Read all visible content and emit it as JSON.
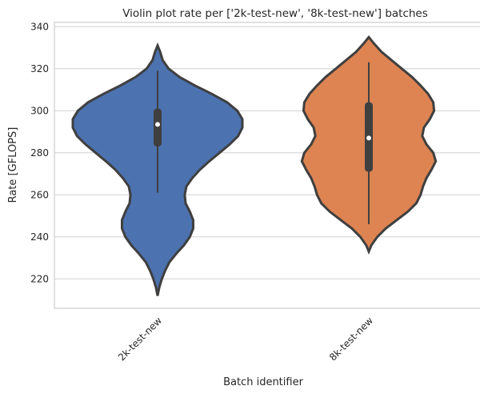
{
  "chart_data": {
    "type": "violin",
    "title": "Violin plot rate per ['2k-test-new', '8k-test-new'] batches",
    "xlabel": "Batch identifier",
    "ylabel": "Rate [GFLOPS]",
    "ylim": [
      206,
      342
    ],
    "yticks": [
      220,
      240,
      260,
      280,
      300,
      320,
      340
    ],
    "grid": true,
    "categories": [
      "2k-test-new",
      "8k-test-new"
    ],
    "series": [
      {
        "category": "2k-test-new",
        "color": "#4c72b0",
        "density": [
          [
            212,
            0.0
          ],
          [
            216,
            0.02
          ],
          [
            220,
            0.05
          ],
          [
            224,
            0.09
          ],
          [
            228,
            0.14
          ],
          [
            232,
            0.22
          ],
          [
            236,
            0.31
          ],
          [
            240,
            0.38
          ],
          [
            244,
            0.42
          ],
          [
            248,
            0.42
          ],
          [
            252,
            0.38
          ],
          [
            256,
            0.33
          ],
          [
            260,
            0.32
          ],
          [
            264,
            0.34
          ],
          [
            268,
            0.41
          ],
          [
            272,
            0.5
          ],
          [
            276,
            0.61
          ],
          [
            280,
            0.73
          ],
          [
            284,
            0.85
          ],
          [
            288,
            0.95
          ],
          [
            292,
            1.0
          ],
          [
            296,
            1.0
          ],
          [
            300,
            0.94
          ],
          [
            304,
            0.82
          ],
          [
            308,
            0.64
          ],
          [
            312,
            0.44
          ],
          [
            316,
            0.26
          ],
          [
            320,
            0.13
          ],
          [
            324,
            0.06
          ],
          [
            328,
            0.03
          ],
          [
            331,
            0.0
          ]
        ],
        "whisker": [
          261,
          319
        ],
        "q1": 283,
        "q3": 301,
        "median": 293.5
      },
      {
        "category": "8k-test-new",
        "color": "#dd8452",
        "density": [
          [
            233,
            0.0
          ],
          [
            236,
            0.03
          ],
          [
            240,
            0.1
          ],
          [
            244,
            0.2
          ],
          [
            248,
            0.33
          ],
          [
            252,
            0.46
          ],
          [
            256,
            0.56
          ],
          [
            260,
            0.61
          ],
          [
            264,
            0.64
          ],
          [
            268,
            0.68
          ],
          [
            272,
            0.74
          ],
          [
            276,
            0.79
          ],
          [
            280,
            0.76
          ],
          [
            284,
            0.68
          ],
          [
            288,
            0.63
          ],
          [
            292,
            0.65
          ],
          [
            296,
            0.72
          ],
          [
            300,
            0.77
          ],
          [
            304,
            0.76
          ],
          [
            308,
            0.7
          ],
          [
            312,
            0.61
          ],
          [
            316,
            0.51
          ],
          [
            320,
            0.39
          ],
          [
            324,
            0.27
          ],
          [
            328,
            0.15
          ],
          [
            332,
            0.06
          ],
          [
            335,
            0.0
          ]
        ],
        "whisker": [
          246,
          323
        ],
        "q1": 271,
        "q3": 304,
        "median": 287
      }
    ]
  }
}
